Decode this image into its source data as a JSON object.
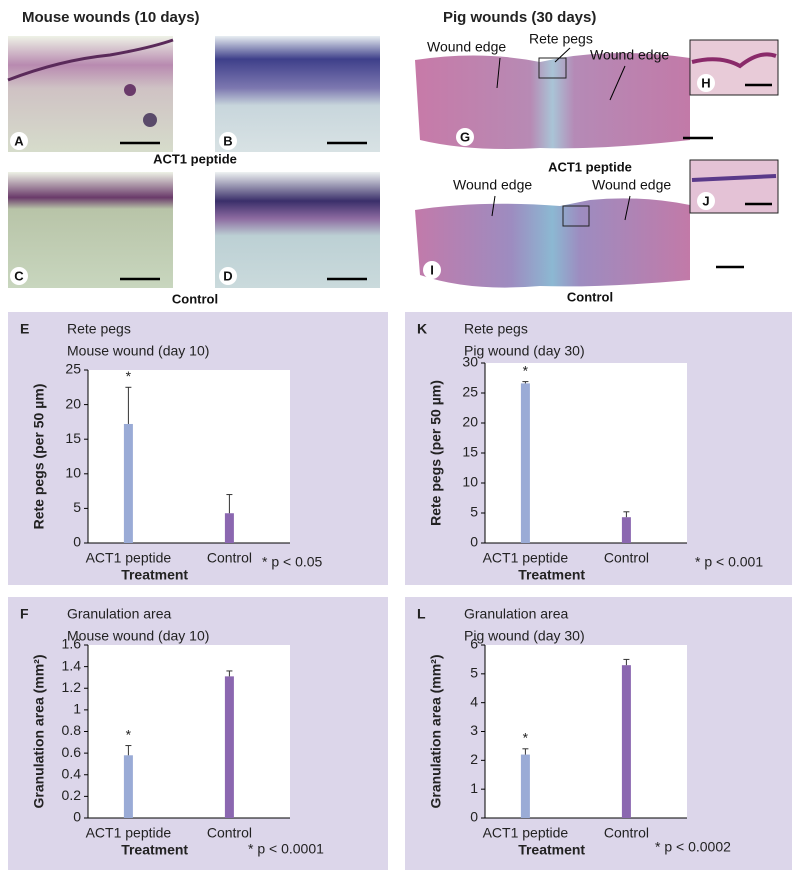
{
  "figure": {
    "left_heading": "Mouse wounds (10 days)",
    "right_heading": "Pig wounds (30 days)",
    "mouse_row1": "ACT1 peptide",
    "mouse_row2": "Control",
    "pig_row1": "ACT1 peptide",
    "pig_row2": "Control",
    "panel_letters": [
      "A",
      "B",
      "C",
      "D",
      "G",
      "H",
      "I",
      "J"
    ],
    "pig_labels": [
      "Wound edge",
      "Rete pegs",
      "Wound edge",
      "Wound edge",
      "Wound edge"
    ]
  },
  "chart_data": [
    {
      "type": "bar",
      "panel": "E",
      "title": "Rete pegs",
      "subtitle": "Mouse wound (day 10)",
      "categories": [
        "ACT1 peptide",
        "Control"
      ],
      "values": [
        17.2,
        4.3
      ],
      "errors": [
        5.3,
        2.7
      ],
      "colors": [
        "#9aabd6",
        "#8b67b0"
      ],
      "xlabel": "Treatment",
      "ylabel": "Rete pegs (per 50 µm)",
      "ylim": [
        0,
        25
      ],
      "yticks": [
        0,
        5,
        10,
        15,
        20,
        25
      ],
      "annotations": [
        "*",
        "* p < 0.05"
      ]
    },
    {
      "type": "bar",
      "panel": "K",
      "title": "Rete pegs",
      "subtitle": "Pig wound (day 30)",
      "categories": [
        "ACT1 peptide",
        "Control"
      ],
      "values": [
        26.6,
        4.3
      ],
      "errors": [
        0.3,
        0.9
      ],
      "colors": [
        "#9aabd6",
        "#8b67b0"
      ],
      "xlabel": "Treatment",
      "ylabel": "Rete pegs (per 50 µm)",
      "ylim": [
        0,
        30
      ],
      "yticks": [
        0,
        5,
        10,
        15,
        20,
        25,
        30
      ],
      "annotations": [
        "*",
        "* p < 0.001"
      ]
    },
    {
      "type": "bar",
      "panel": "F",
      "title": "Granulation area",
      "subtitle": "Mouse wound (day 10)",
      "categories": [
        "ACT1 peptide",
        "Control"
      ],
      "values": [
        0.58,
        1.31
      ],
      "errors": [
        0.09,
        0.05
      ],
      "colors": [
        "#9aabd6",
        "#8b67b0"
      ],
      "xlabel": "Treatment",
      "ylabel": "Granulation area (mm²)",
      "ylim": [
        0,
        1.6
      ],
      "yticks": [
        0,
        0.2,
        0.4,
        0.6,
        0.8,
        1,
        1.2,
        1.4,
        1.6
      ],
      "annotations": [
        "*",
        "* p < 0.0001"
      ]
    },
    {
      "type": "bar",
      "panel": "L",
      "title": "Granulation area",
      "subtitle": "Pig wound (day 30)",
      "categories": [
        "ACT1 peptide",
        "Control"
      ],
      "values": [
        2.2,
        5.3
      ],
      "errors": [
        0.2,
        0.2
      ],
      "colors": [
        "#9aabd6",
        "#8b67b0"
      ],
      "xlabel": "Treatment",
      "ylabel": "Granulation area (mm²)",
      "ylim": [
        0,
        6
      ],
      "yticks": [
        0,
        1,
        2,
        3,
        4,
        5,
        6
      ],
      "annotations": [
        "*",
        "* p < 0.0002"
      ]
    }
  ]
}
